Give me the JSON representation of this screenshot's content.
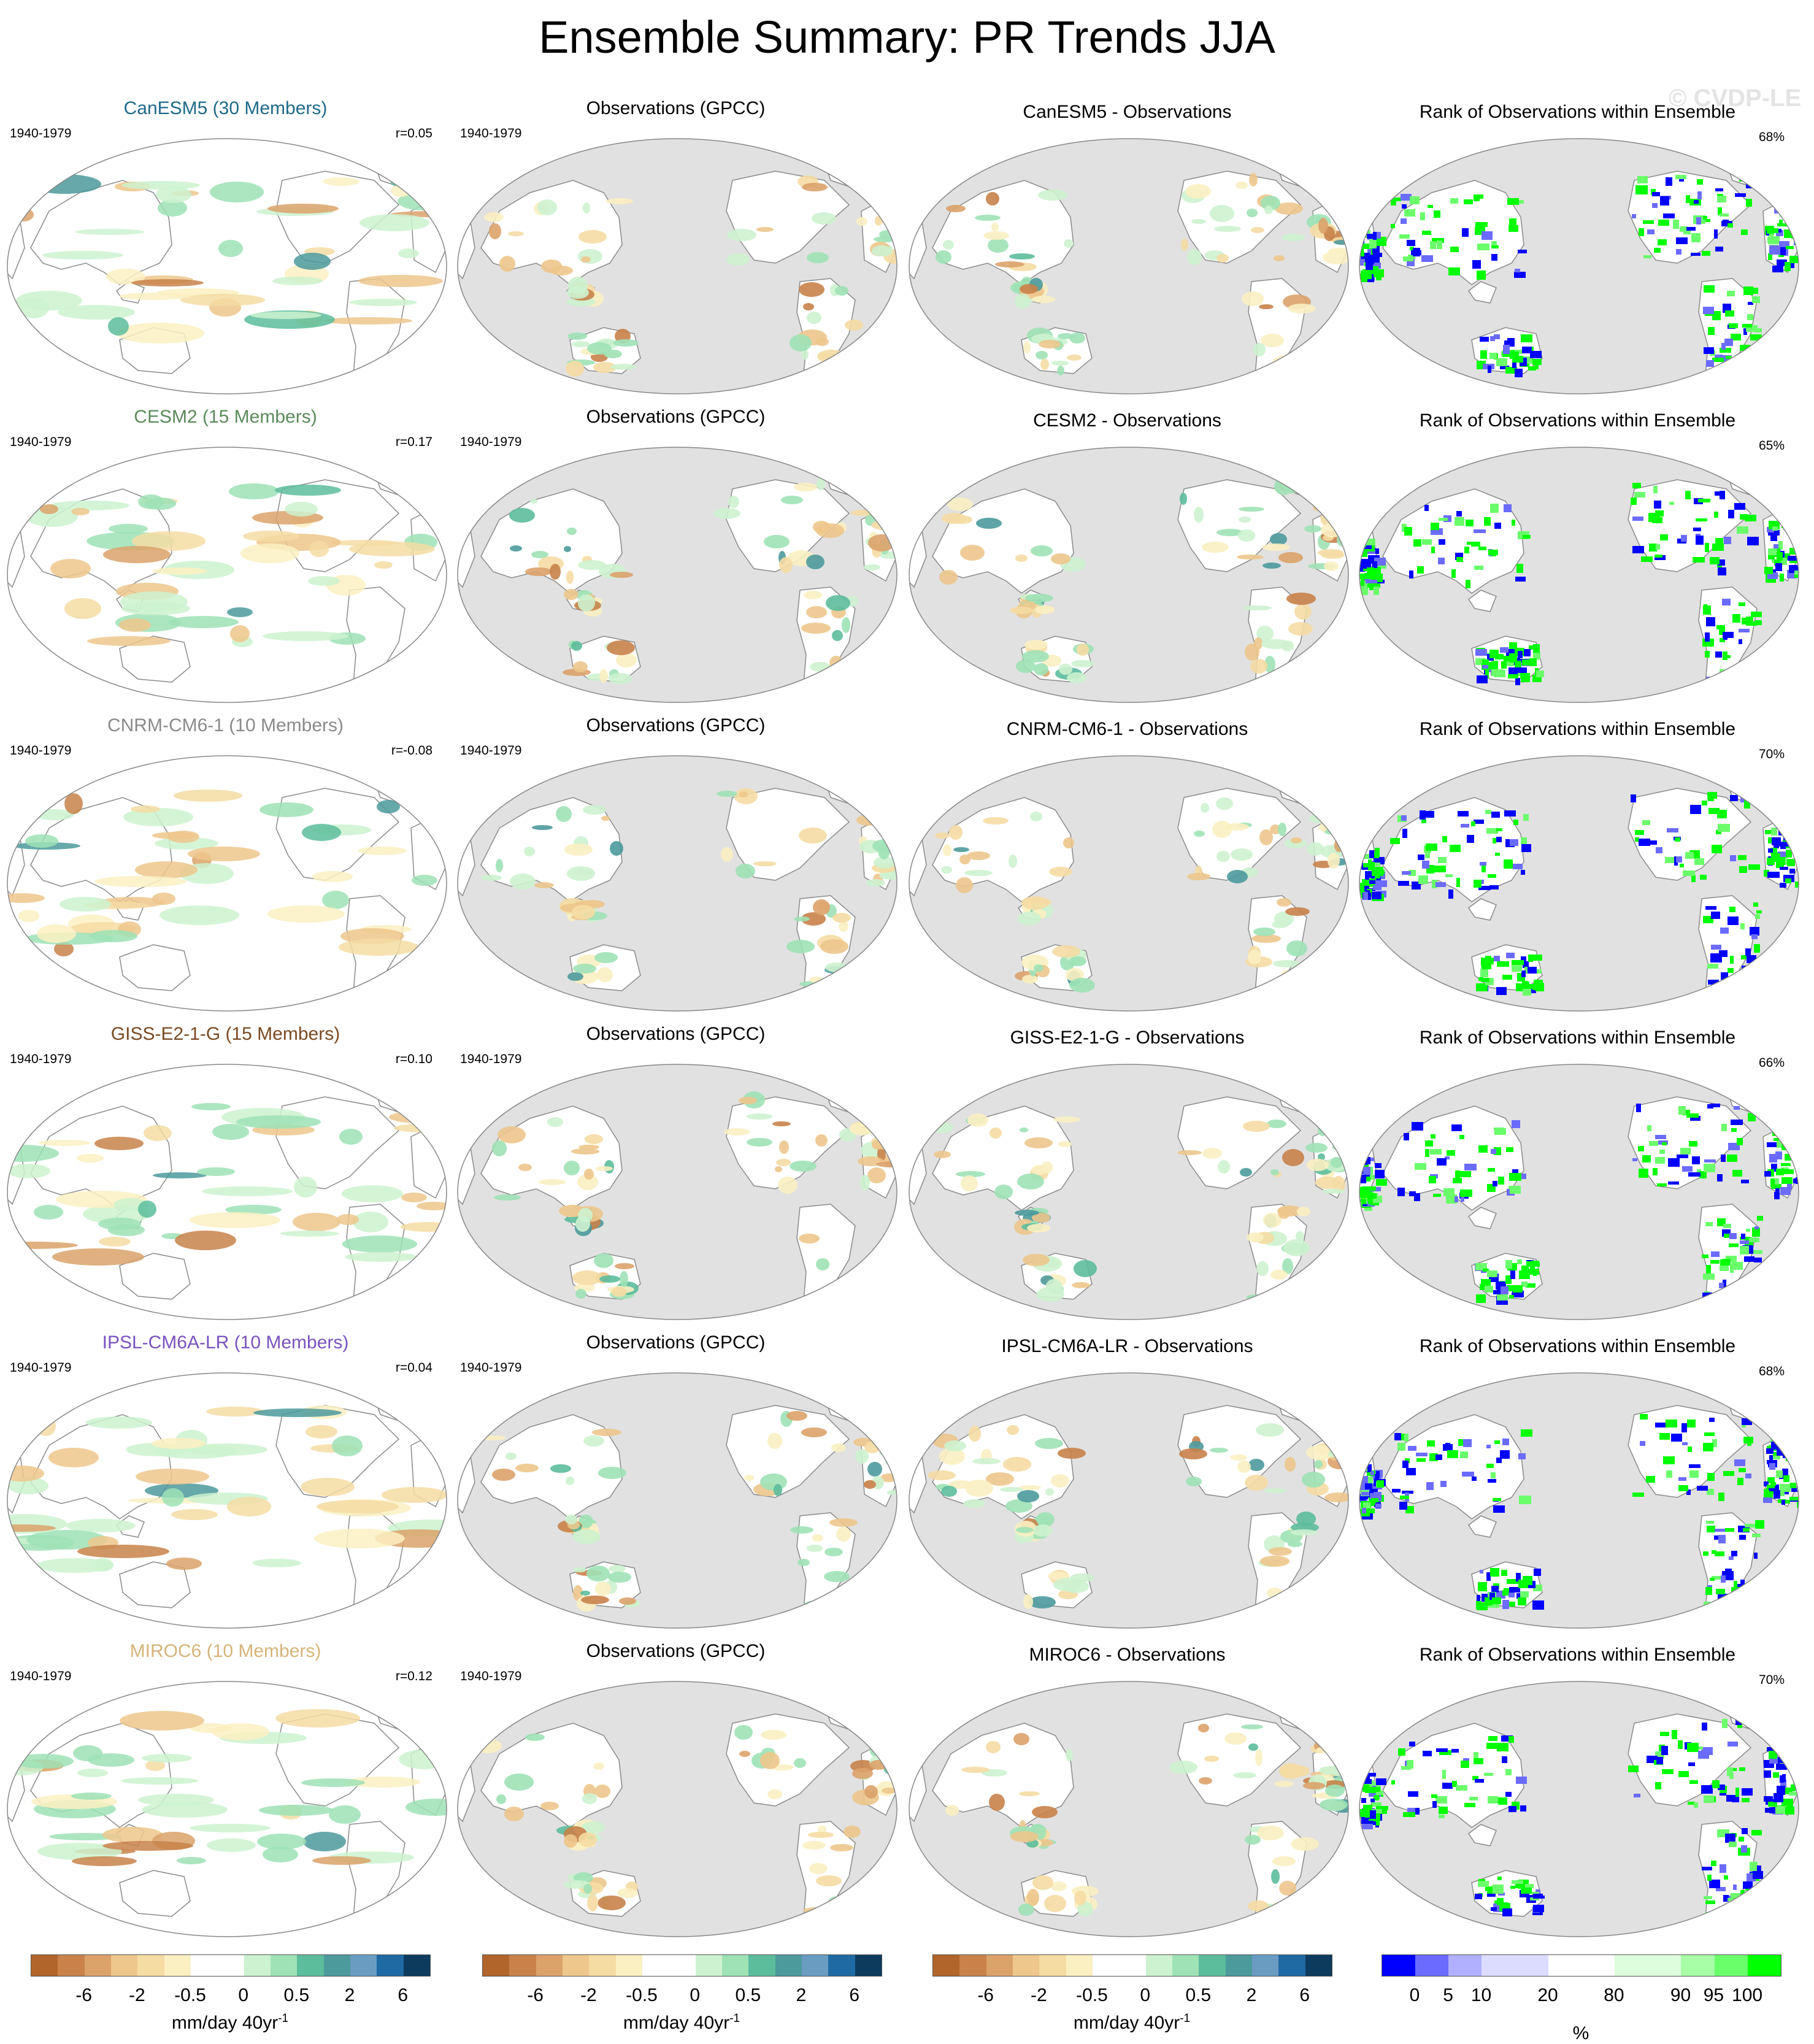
{
  "title": "Ensemble Summary: PR Trends JJA",
  "watermark": "© CVDP-LE",
  "observations_title": "Observations (GPCC)",
  "rank_title": "Rank of Observations within Ensemble",
  "period": "1940-1979",
  "colors": {
    "land": "#ffffff",
    "ocean_obs": "#e1e1e1",
    "coast": "#8a8a8a"
  },
  "rows": [
    {
      "model": "CanESM5",
      "members_label": "CanESM5 (30 Members)",
      "model_color": "#1f6a8a",
      "corr": "r=0.05",
      "diff_title": "CanESM5 - Observations",
      "rank_pct": "68%"
    },
    {
      "model": "CESM2",
      "members_label": "CESM2 (15 Members)",
      "model_color": "#5b8a5b",
      "corr": "r=0.17",
      "diff_title": "CESM2 - Observations",
      "rank_pct": "65%"
    },
    {
      "model": "CNRM-CM6-1",
      "members_label": "CNRM-CM6-1 (10 Members)",
      "model_color": "#8a8a8a",
      "corr": "r=-0.08",
      "diff_title": "CNRM-CM6-1 - Observations",
      "rank_pct": "70%"
    },
    {
      "model": "GISS-E2-1-G",
      "members_label": "GISS-E2-1-G (15 Members)",
      "model_color": "#7a4a22",
      "corr": "r=0.10",
      "diff_title": "GISS-E2-1-G - Observations",
      "rank_pct": "66%"
    },
    {
      "model": "IPSL-CM6A-LR",
      "members_label": "IPSL-CM6A-LR (10 Members)",
      "model_color": "#7a52c0",
      "corr": "r=0.04",
      "diff_title": "IPSL-CM6A-LR - Observations",
      "rank_pct": "68%"
    },
    {
      "model": "MIROC6",
      "members_label": "MIROC6 (10 Members)",
      "model_color": "#d6b47a",
      "corr": "r=0.12",
      "diff_title": "MIROC6 - Observations",
      "rank_pct": "70%"
    }
  ],
  "chart_data": {
    "type": "heatmap",
    "title": "Ensemble Summary: PR Trends JJA",
    "projection": "Robinson, Pacific-centered",
    "trend_colorbar": {
      "colors": [
        "#b2652a",
        "#c8824a",
        "#dba26a",
        "#edc78c",
        "#f5dca3",
        "#fbf0c2",
        "#ffffff",
        "#ffffff",
        "#cdf2cf",
        "#9ee2b6",
        "#5cbd9c",
        "#4c9a9c",
        "#6a9cc2",
        "#1f6aa3",
        "#0d3b5e"
      ],
      "tick_labels": [
        "-6",
        "-2",
        "-0.5",
        "0",
        "0.5",
        "2",
        "6"
      ],
      "tick_after_box": [
        1,
        3,
        5,
        7,
        9,
        11,
        13
      ],
      "units": "mm/day 40yr",
      "units_sup": "-1"
    },
    "rank_colorbar": {
      "colors": [
        "#0000ff",
        "#6b6bff",
        "#b0b0ff",
        "#dcdcff",
        "#ffffff",
        "#ddfedd",
        "#a7fea7",
        "#6bfe6b",
        "#00ff00"
      ],
      "widths": [
        1,
        1,
        1,
        2,
        2,
        2,
        1,
        1,
        1
      ],
      "tick_labels": [
        "0",
        "5",
        "10",
        "20",
        "80",
        "90",
        "95",
        "100"
      ],
      "tick_positions": [
        0.083,
        0.167,
        0.25,
        0.417,
        0.583,
        0.75,
        0.833,
        0.917
      ],
      "units": "%"
    }
  }
}
